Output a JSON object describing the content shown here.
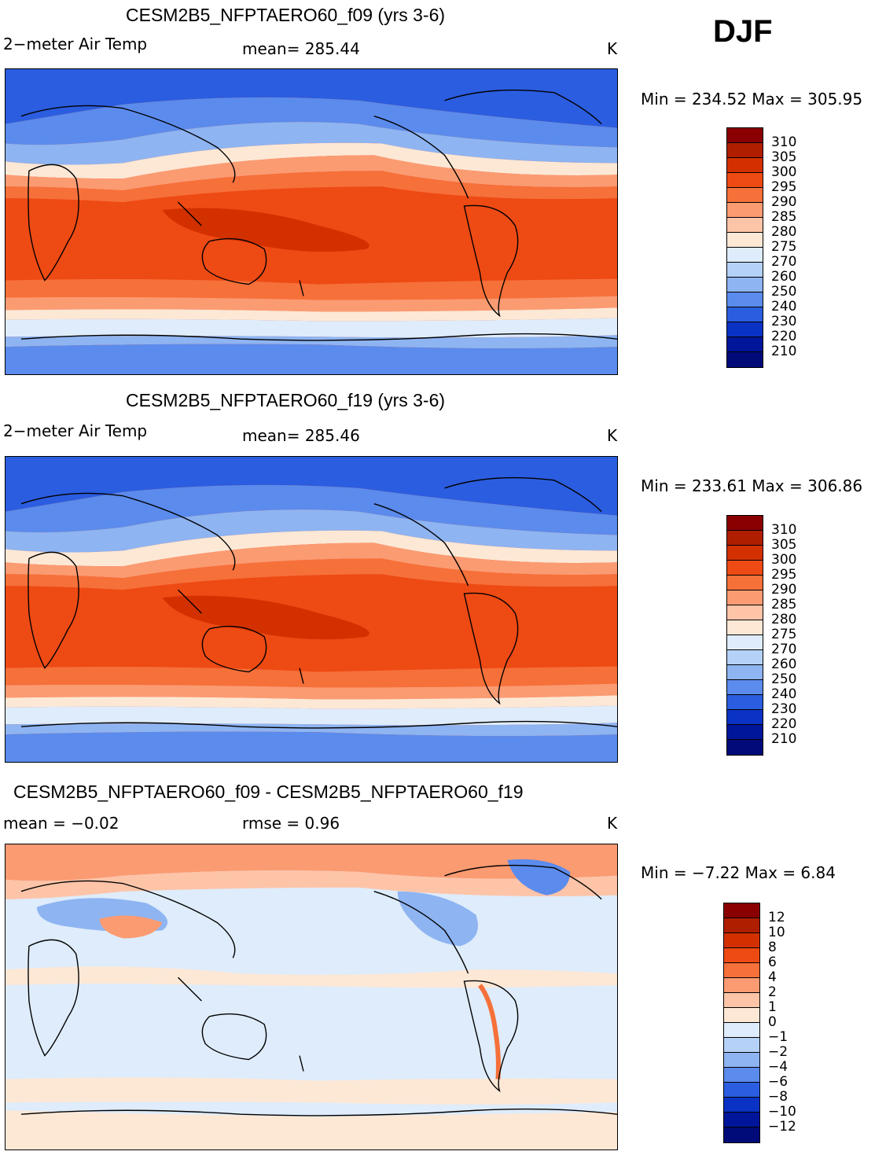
{
  "season": "DJF",
  "panels": [
    {
      "title": "CESM2B5_NFPTAERO60_f09 (yrs 3-6)",
      "variable": "2−meter Air Temp",
      "stat_text": "mean=  285.44",
      "units": "K",
      "minmax": "Min  =  234.52  Max  =  305.95"
    },
    {
      "title": "CESM2B5_NFPTAERO60_f19 (yrs 3-6)",
      "variable": "2−meter Air Temp",
      "stat_text": "mean=  285.46",
      "units": "K",
      "minmax": "Min  =  233.61  Max  =  306.86"
    },
    {
      "title": "CESM2B5_NFPTAERO60_f09 - CESM2B5_NFPTAERO60_f19",
      "mean_text": "mean =    −0.02",
      "rmse_text": "rmse =     0.96",
      "units": "K",
      "minmax": "Min  =    −7.22  Max  =      6.84"
    }
  ],
  "legend_temp": {
    "labels": [
      "310",
      "305",
      "300",
      "295",
      "290",
      "285",
      "280",
      "275",
      "270",
      "260",
      "250",
      "240",
      "230",
      "220",
      "210"
    ],
    "colors": [
      "#8a0000",
      "#b01e00",
      "#d33000",
      "#ee4a14",
      "#f6703a",
      "#fb9b72",
      "#fdc4a8",
      "#fde8d6",
      "#deecfb",
      "#b5d1f7",
      "#8eb4f2",
      "#5b8bec",
      "#2b5de0",
      "#0a32c4",
      "#00169a",
      "#000a78"
    ]
  },
  "legend_diff": {
    "labels": [
      "12",
      "10",
      "8",
      "6",
      "4",
      "2",
      "1",
      "0",
      "−1",
      "−2",
      "−4",
      "−6",
      "−8",
      "−10",
      "−12"
    ],
    "colors": [
      "#8a0000",
      "#b01e00",
      "#d33000",
      "#ee4a14",
      "#f6703a",
      "#fb9b72",
      "#fdc4a8",
      "#fde8d6",
      "#deecfb",
      "#b5d1f7",
      "#8eb4f2",
      "#5b8bec",
      "#2b5de0",
      "#0a32c4",
      "#00169a",
      "#000a78"
    ]
  }
}
